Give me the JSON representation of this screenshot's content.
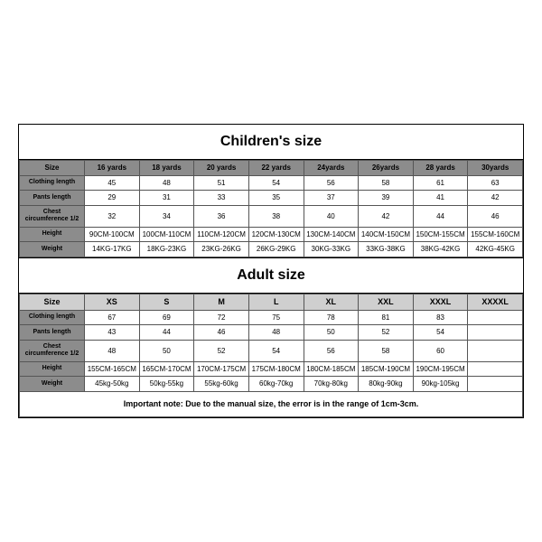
{
  "children": {
    "title": "Children's size",
    "size_label": "Size",
    "headers": [
      "16 yards",
      "18 yards",
      "20 yards",
      "22 yards",
      "24yards",
      "26yards",
      "28 yards",
      "30yards"
    ],
    "rows": [
      {
        "label": "Clothing length",
        "cells": [
          "45",
          "48",
          "51",
          "54",
          "56",
          "58",
          "61",
          "63"
        ]
      },
      {
        "label": "Pants length",
        "cells": [
          "29",
          "31",
          "33",
          "35",
          "37",
          "39",
          "41",
          "42"
        ]
      },
      {
        "label": "Chest circumference 1/2",
        "cells": [
          "32",
          "34",
          "36",
          "38",
          "40",
          "42",
          "44",
          "46"
        ]
      },
      {
        "label": "Height",
        "cells": [
          "90CM-100CM",
          "100CM-110CM",
          "110CM-120CM",
          "120CM-130CM",
          "130CM-140CM",
          "140CM-150CM",
          "150CM-155CM",
          "155CM-160CM"
        ]
      },
      {
        "label": "Weight",
        "cells": [
          "14KG-17KG",
          "18KG-23KG",
          "23KG-26KG",
          "26KG-29KG",
          "30KG-33KG",
          "33KG-38KG",
          "38KG-42KG",
          "42KG-45KG"
        ]
      }
    ]
  },
  "adult": {
    "title": "Adult size",
    "size_label": "Size",
    "headers": [
      "XS",
      "S",
      "M",
      "L",
      "XL",
      "XXL",
      "XXXL",
      "XXXXL"
    ],
    "rows": [
      {
        "label": "Clothing length",
        "cells": [
          "67",
          "69",
          "72",
          "75",
          "78",
          "81",
          "83",
          ""
        ]
      },
      {
        "label": "Pants length",
        "cells": [
          "43",
          "44",
          "46",
          "48",
          "50",
          "52",
          "54",
          ""
        ]
      },
      {
        "label": "Chest circumference 1/2",
        "cells": [
          "48",
          "50",
          "52",
          "54",
          "56",
          "58",
          "60",
          ""
        ]
      },
      {
        "label": "Height",
        "cells": [
          "155CM-165CM",
          "165CM-170CM",
          "170CM-175CM",
          "175CM-180CM",
          "180CM-185CM",
          "185CM-190CM",
          "190CM-195CM",
          ""
        ]
      },
      {
        "label": "Weight",
        "cells": [
          "45kg-50kg",
          "50kg-55kg",
          "55kg-60kg",
          "60kg-70kg",
          "70kg-80kg",
          "80kg-90kg",
          "90kg-105kg",
          ""
        ]
      }
    ]
  },
  "note": "Important note: Due to the manual size, the error is in the range of 1cm-3cm.",
  "colors": {
    "header_bg": "#8c8c8c",
    "adult_header_bg": "#cfcfcf",
    "border": "#000000",
    "cell_border": "#555555",
    "text": "#000000",
    "bg": "#ffffff"
  }
}
